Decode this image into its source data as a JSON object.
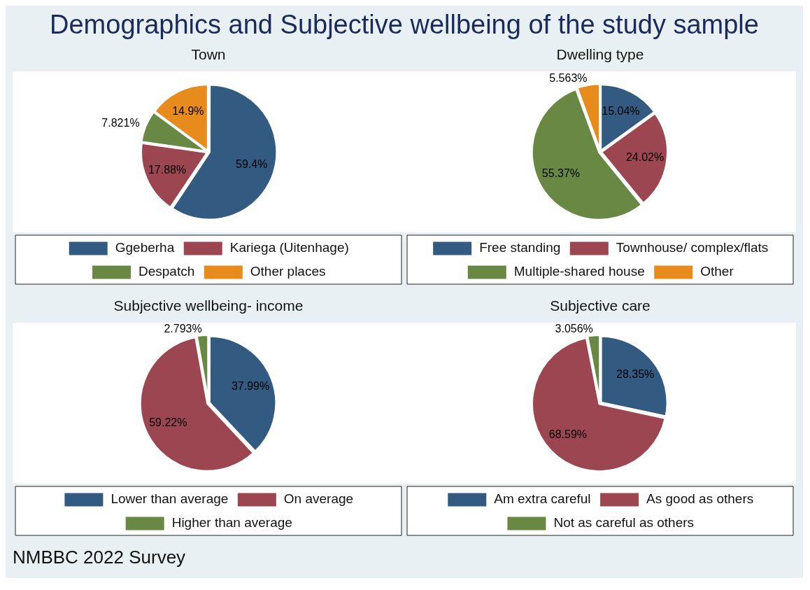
{
  "chart_data": [
    {
      "type": "other",
      "title": "Demographics and Subjective wellbeing of the study sample",
      "annotations": [
        "NMBBC 2022 Survey"
      ]
    },
    {
      "type": "pie",
      "title": "Town",
      "categories": [
        "Ggeberha",
        "Kariega (Uitenhage)",
        "Despatch",
        "Other places"
      ],
      "values": [
        59.4,
        17.88,
        7.821,
        14.9
      ],
      "value_labels": [
        "59.4%",
        "17.88%",
        "7.821%",
        "14.9%"
      ],
      "colors": [
        "#335a80",
        "#9b4650",
        "#688843",
        "#e78b1c"
      ],
      "legend": "bottom"
    },
    {
      "type": "pie",
      "title": "Dwelling type",
      "categories": [
        "Free standing",
        "Townhouse/ complex/flats",
        "Multiple-shared house",
        "Other"
      ],
      "values": [
        15.04,
        24.02,
        55.37,
        5.563
      ],
      "value_labels": [
        "15.04%",
        "24.02%",
        "55.37%",
        "5.563%"
      ],
      "colors": [
        "#335a80",
        "#9b4650",
        "#688843",
        "#e78b1c"
      ],
      "legend": "bottom"
    },
    {
      "type": "pie",
      "title": "Subjective wellbeing- income",
      "categories": [
        "Lower than average",
        "On average",
        "Higher than average"
      ],
      "values": [
        37.99,
        59.22,
        2.793
      ],
      "value_labels": [
        "37.99%",
        "59.22%",
        "2.793%"
      ],
      "colors": [
        "#335a80",
        "#9b4650",
        "#688843"
      ],
      "legend": "bottom"
    },
    {
      "type": "pie",
      "title": "Subjective care",
      "categories": [
        "Am extra careful",
        "As good as others",
        "Not as careful as others"
      ],
      "values": [
        28.35,
        68.59,
        3.056
      ],
      "value_labels": [
        "28.35%",
        "68.59%",
        "3.056%"
      ],
      "colors": [
        "#335a80",
        "#9b4650",
        "#688843"
      ],
      "legend": "bottom"
    }
  ]
}
